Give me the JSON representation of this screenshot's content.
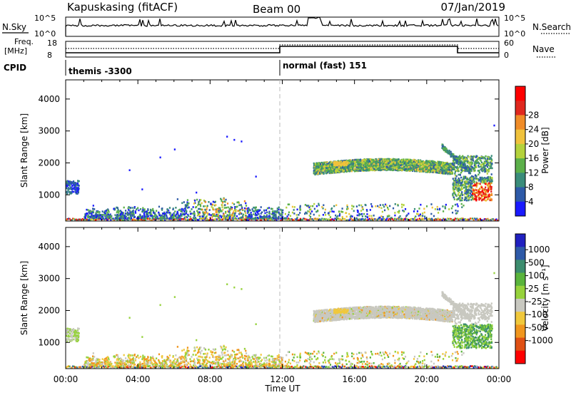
{
  "header": {
    "station": "Kapuskasing (fitACF)",
    "beam": "Beam 00",
    "date": "07/Jan/2019"
  },
  "panels_top": {
    "nsky_label": "N.Sky",
    "nsearch_label": "N.Search",
    "left_ticks": [
      "10^5",
      "10^0"
    ],
    "right_ticks": [
      "10^5",
      "10^0"
    ],
    "freq_label_1": "Freq.",
    "freq_label_2": "[MHz]",
    "freq_ticks": [
      "18",
      "8"
    ],
    "nave_label": "Nave",
    "nave_ticks": [
      "60",
      "0"
    ],
    "cpid_label": "CPID",
    "cpid_1": "themis -3300",
    "cpid_2": "normal (fast) 151"
  },
  "chart_data": [
    {
      "type": "heatmap",
      "title": "",
      "ylabel": "Slant Range [km]",
      "xlabel": "",
      "yticks": [
        "1000",
        "2000",
        "3000",
        "4000"
      ],
      "ylim": [
        180,
        4600
      ],
      "xlim_hours": [
        0,
        24
      ],
      "colorbar": {
        "label": "Power [dB]",
        "ticks": [
          "4",
          "8",
          "12",
          "16",
          "20",
          "24",
          "28"
        ],
        "colors": [
          "#1a1aff",
          "#2e5aa8",
          "#3a8c7a",
          "#5cb04a",
          "#b4d23c",
          "#f0c23c",
          "#f08c28",
          "#e0281e",
          "#ff0000"
        ]
      }
    },
    {
      "type": "heatmap",
      "title": "",
      "ylabel": "Slant Range [km]",
      "xlabel": "Time UT",
      "yticks": [
        "1000",
        "2000",
        "3000",
        "4000"
      ],
      "ylim": [
        180,
        4600
      ],
      "xlim_hours": [
        0,
        24
      ],
      "xticks": [
        "00:00",
        "04:00",
        "08:00",
        "12:00",
        "16:00",
        "20:00",
        "00:00"
      ],
      "colorbar": {
        "label": "Velocity [m s⁻¹]",
        "ticks": [
          "1000",
          "500",
          "100",
          "25",
          "-25",
          "-100",
          "-500",
          "-1000"
        ],
        "colors": [
          "#2020c0",
          "#2e5aa8",
          "#3c8c6e",
          "#5ab43c",
          "#96d23c",
          "#c8c8c0",
          "#f0c83c",
          "#f0961e",
          "#e05014",
          "#ff0000"
        ]
      }
    }
  ]
}
